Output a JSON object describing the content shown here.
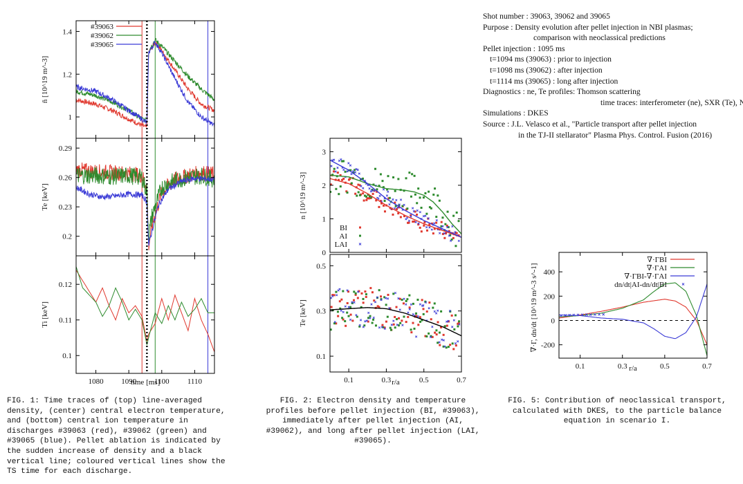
{
  "info": {
    "shot": "Shot number :  39063, 39062 and 39065",
    "purpose1": "Purpose :  Density evolution after pellet injection in NBI plasmas;",
    "purpose2": "comparison with neoclassical predictions",
    "pellet": "Pellet injection :  1095 ms",
    "t1": "t=1094 ms (39063) : prior to injection",
    "t2": "t=1098 ms (39062) : after injection",
    "t3": "t=1114 ms (39065) : long after injection",
    "diag1": "Diagnostics :  ne, Te profiles:  Thomson scattering",
    "diag2": "time traces: interferometer (ne), SXR (Te), NPA (Ti)",
    "sim": "Simulations :  DKES",
    "source1": "Source :  J.L. Velasco et al., \"Particle transport after pellet injection",
    "source2": "in the TJ-II stellarator\" Plasma Phys. Control. Fusion (2016)"
  },
  "captions": {
    "fig1": "FIG. 1: Time traces of (top) line-averaged density, (center) central electron temperature, and (bottom) central ion temperature in discharges #39063 (red), #39062 (green) and #39065 (blue). Pellet ablation is indicated by the sudden increase of density and a black vertical line; coloured vertical lines show the TS time for each discharge.",
    "fig2": "FIG. 2: Electron density and temperature profiles before pellet injection (BI, #39063), immediately after pellet injection (AI, #39062), and long after pellet injection (LAI, #39065).",
    "fig5": "FIG. 5: Contribution of neoclassical transport, calculated with DKES, to the particle balance equation in scenario I."
  },
  "colors": {
    "red": "#e0382e",
    "green": "#2e8b2e",
    "blue": "#3a3ad6",
    "black": "#000000"
  },
  "chart_data": [
    {
      "type": "line",
      "panel": "fig1-top",
      "ylabel": "n̄ [10^19 m^-3]",
      "xlim": [
        1074,
        1116
      ],
      "ylim": [
        0.9,
        1.45
      ],
      "yticks": [
        1,
        1.2,
        1.4
      ],
      "series": [
        {
          "name": "#39063",
          "color": "red",
          "x": [
            1074,
            1080,
            1085,
            1090,
            1094,
            1095.5,
            1096,
            1098,
            1100,
            1104,
            1108,
            1112,
            1116
          ],
          "y": [
            1.08,
            1.06,
            1.03,
            0.99,
            0.96,
            0.95,
            1.3,
            1.35,
            1.31,
            1.22,
            1.13,
            1.06,
            1.03
          ]
        },
        {
          "name": "#39062",
          "color": "green",
          "x": [
            1074,
            1080,
            1085,
            1090,
            1094,
            1095.5,
            1096,
            1098,
            1100,
            1104,
            1108,
            1112,
            1116
          ],
          "y": [
            1.12,
            1.1,
            1.07,
            1.03,
            0.99,
            0.98,
            1.31,
            1.36,
            1.33,
            1.26,
            1.19,
            1.13,
            1.08
          ]
        },
        {
          "name": "#39065",
          "color": "blue",
          "x": [
            1074,
            1080,
            1085,
            1090,
            1094,
            1095.5,
            1096,
            1098,
            1100,
            1104,
            1108,
            1112,
            1116
          ],
          "y": [
            1.14,
            1.12,
            1.08,
            1.03,
            0.99,
            0.97,
            1.3,
            1.35,
            1.3,
            1.18,
            1.07,
            1.0,
            0.96
          ]
        }
      ],
      "vlines": {
        "pellet": 1095.5,
        "red": 1094,
        "green": 1098,
        "blue": 1114
      }
    },
    {
      "type": "line",
      "panel": "fig1-center",
      "ylabel": "Te [keV]",
      "xlim": [
        1074,
        1116
      ],
      "ylim": [
        0.18,
        0.3
      ],
      "yticks": [
        0.2,
        0.23,
        0.26,
        0.29
      ],
      "series": [
        {
          "name": "#39063",
          "color": "red",
          "x": [
            1074,
            1080,
            1085,
            1090,
            1094,
            1095.5,
            1096,
            1097,
            1100,
            1104,
            1108,
            1112,
            1116
          ],
          "y": [
            0.268,
            0.266,
            0.265,
            0.264,
            0.262,
            0.25,
            0.19,
            0.21,
            0.245,
            0.258,
            0.262,
            0.265,
            0.263
          ]
        },
        {
          "name": "#39062",
          "color": "green",
          "x": [
            1074,
            1080,
            1085,
            1090,
            1094,
            1095.5,
            1096,
            1097,
            1100,
            1104,
            1108,
            1112,
            1116
          ],
          "y": [
            0.262,
            0.262,
            0.261,
            0.262,
            0.26,
            0.245,
            0.2,
            0.22,
            0.25,
            0.257,
            0.26,
            0.262,
            0.258
          ]
        },
        {
          "name": "#39065",
          "color": "blue",
          "x": [
            1074,
            1078,
            1082,
            1086,
            1090,
            1094,
            1095.5,
            1096,
            1097,
            1099,
            1102,
            1106,
            1110,
            1116
          ],
          "y": [
            0.25,
            0.243,
            0.24,
            0.241,
            0.243,
            0.242,
            0.235,
            0.19,
            0.205,
            0.232,
            0.248,
            0.256,
            0.259,
            0.258
          ]
        }
      ]
    },
    {
      "type": "line",
      "panel": "fig1-bottom",
      "ylabel": "Ti [keV]",
      "xlabel": "time [ms]",
      "xlim": [
        1074,
        1116
      ],
      "ylim": [
        0.095,
        0.128
      ],
      "xticks": [
        1080,
        1090,
        1100,
        1110
      ],
      "yticks": [
        0.1,
        0.11,
        0.12
      ],
      "series": [
        {
          "name": "#39063",
          "color": "red",
          "x": [
            1074,
            1076,
            1078,
            1080,
            1082,
            1084,
            1086,
            1088,
            1090,
            1092,
            1094,
            1095.5,
            1096,
            1098,
            1100,
            1102,
            1104,
            1106,
            1108,
            1110,
            1112,
            1114,
            1116
          ],
          "y": [
            0.124,
            0.121,
            0.118,
            0.115,
            0.119,
            0.114,
            0.11,
            0.116,
            0.112,
            0.114,
            0.111,
            0.104,
            0.106,
            0.109,
            0.116,
            0.11,
            0.117,
            0.112,
            0.107,
            0.116,
            0.11,
            0.106,
            0.101
          ]
        },
        {
          "name": "#39062",
          "color": "green",
          "x": [
            1074,
            1076,
            1078,
            1080,
            1082,
            1084,
            1086,
            1088,
            1090,
            1092,
            1094,
            1095.5,
            1096,
            1098,
            1100,
            1102,
            1104,
            1106,
            1108,
            1110,
            1112,
            1114,
            1116
          ],
          "y": [
            0.125,
            0.119,
            0.117,
            0.115,
            0.111,
            0.114,
            0.119,
            0.115,
            0.11,
            0.113,
            0.11,
            0.103,
            0.105,
            0.112,
            0.109,
            0.114,
            0.11,
            0.115,
            0.111,
            0.113,
            0.116,
            0.112,
            0.112
          ]
        }
      ]
    },
    {
      "type": "scatter",
      "panel": "fig2-top",
      "ylabel": "n [10^19 m^-3]",
      "xlim": [
        0,
        0.7
      ],
      "ylim": [
        0,
        3.4
      ],
      "yticks": [
        0,
        1,
        2,
        3
      ],
      "legend": [
        "BI",
        "AI",
        "LAI"
      ],
      "series": [
        {
          "name": "BI",
          "color": "red",
          "fit_x": [
            0,
            0.1,
            0.2,
            0.3,
            0.4,
            0.5,
            0.6,
            0.7
          ],
          "fit_y": [
            2.2,
            2.05,
            1.75,
            1.4,
            1.1,
            0.85,
            0.65,
            0.45
          ]
        },
        {
          "name": "AI",
          "color": "green",
          "fit_x": [
            0,
            0.1,
            0.2,
            0.3,
            0.4,
            0.45,
            0.5,
            0.55,
            0.6,
            0.65,
            0.7
          ],
          "fit_y": [
            2.3,
            2.25,
            2.05,
            1.9,
            1.85,
            1.8,
            1.7,
            1.5,
            1.2,
            0.85,
            0.55
          ]
        },
        {
          "name": "LAI",
          "color": "blue",
          "fit_x": [
            0,
            0.1,
            0.2,
            0.3,
            0.4,
            0.5,
            0.6,
            0.7
          ],
          "fit_y": [
            2.75,
            2.45,
            2.05,
            1.6,
            1.25,
            0.95,
            0.7,
            0.45
          ]
        }
      ]
    },
    {
      "type": "scatter",
      "panel": "fig2-bottom",
      "ylabel": "Te [keV]",
      "xlabel": "r/a",
      "xlim": [
        0,
        0.7
      ],
      "ylim": [
        0.03,
        0.55
      ],
      "xticks": [
        0.1,
        0.3,
        0.5,
        0.7
      ],
      "yticks": [
        0.1,
        0.3,
        0.5
      ],
      "fit": {
        "x": [
          0,
          0.1,
          0.2,
          0.3,
          0.4,
          0.5,
          0.6,
          0.7
        ],
        "y": [
          0.305,
          0.31,
          0.315,
          0.31,
          0.29,
          0.26,
          0.23,
          0.19
        ]
      }
    },
    {
      "type": "line",
      "panel": "fig5",
      "ylabel": "∇·Γ, dn/dt [10^19 m^-3 s^-1]",
      "xlabel": "r/a",
      "xlim": [
        0,
        0.7
      ],
      "ylim": [
        -310,
        560
      ],
      "xticks": [
        0.1,
        0.3,
        0.5,
        0.7
      ],
      "yticks": [
        -200,
        0,
        200,
        400
      ],
      "series": [
        {
          "name": "∇·ΓBI",
          "color": "red",
          "x": [
            0,
            0.1,
            0.2,
            0.3,
            0.4,
            0.5,
            0.55,
            0.6,
            0.65,
            0.7
          ],
          "y": [
            20,
            45,
            75,
            110,
            150,
            175,
            160,
            110,
            0,
            -200
          ]
        },
        {
          "name": "∇·ΓAI",
          "color": "green",
          "x": [
            0,
            0.1,
            0.2,
            0.3,
            0.4,
            0.45,
            0.5,
            0.55,
            0.6,
            0.65,
            0.7
          ],
          "y": [
            30,
            40,
            60,
            100,
            170,
            240,
            300,
            310,
            240,
            40,
            -290
          ]
        },
        {
          "name": "∇·ΓBI-∇·ΓAI",
          "color": "blue",
          "x": [
            0,
            0.1,
            0.2,
            0.3,
            0.4,
            0.45,
            0.5,
            0.55,
            0.6,
            0.65,
            0.7
          ],
          "y": [
            45,
            40,
            20,
            10,
            -20,
            -70,
            -130,
            -150,
            -100,
            30,
            300
          ]
        },
        {
          "name": "dn/dt|AI-dn/dt|BI",
          "color": "blue",
          "marker": "x",
          "x": [
            0.01,
            0.03,
            0.05,
            0.07,
            0.09,
            0.11,
            0.13,
            0.15,
            0.17,
            0.19,
            0.21
          ],
          "y": [
            40,
            42,
            44,
            45,
            46,
            47,
            48,
            48,
            49,
            50,
            50
          ]
        }
      ]
    }
  ]
}
